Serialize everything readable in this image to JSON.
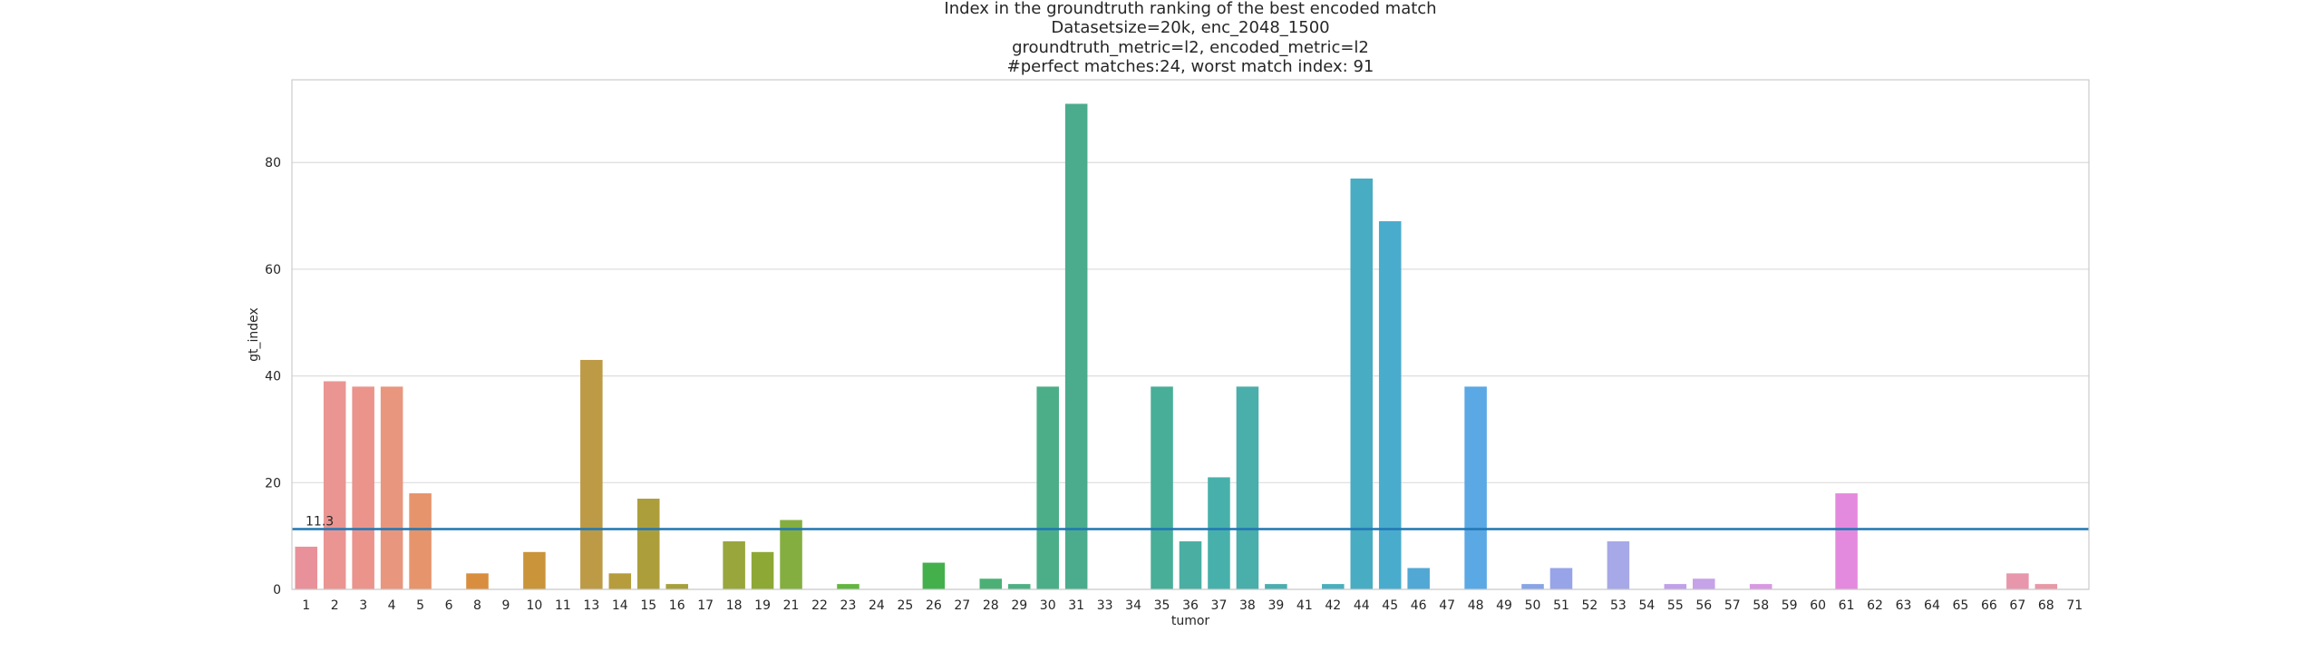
{
  "chart_data": {
    "type": "bar",
    "title_lines": [
      "Index in the groundtruth ranking of the best encoded match",
      "Datasetsize=20k, enc_2048_1500",
      "groundtruth_metric=l2, encoded_metric=l2",
      "#perfect matches:24, worst match index: 91"
    ],
    "xlabel": "tumor",
    "ylabel": "gt_index",
    "ylim": [
      0,
      95.5
    ],
    "yticks": [
      0,
      20,
      40,
      60,
      80
    ],
    "grid": true,
    "categories": [
      "1",
      "2",
      "3",
      "4",
      "5",
      "6",
      "8",
      "9",
      "10",
      "11",
      "13",
      "14",
      "15",
      "16",
      "17",
      "18",
      "19",
      "21",
      "22",
      "23",
      "24",
      "25",
      "26",
      "27",
      "28",
      "29",
      "30",
      "31",
      "33",
      "34",
      "35",
      "36",
      "37",
      "38",
      "39",
      "41",
      "42",
      "44",
      "45",
      "46",
      "47",
      "48",
      "49",
      "50",
      "51",
      "52",
      "53",
      "54",
      "55",
      "56",
      "57",
      "58",
      "59",
      "60",
      "61",
      "62",
      "63",
      "64",
      "65",
      "66",
      "67",
      "68",
      "71"
    ],
    "values": [
      8,
      39,
      38,
      38,
      18,
      0,
      3,
      0,
      7,
      0,
      43,
      3,
      17,
      1,
      0,
      9,
      7,
      13,
      0,
      1,
      0,
      0,
      5,
      0,
      2,
      1,
      38,
      91,
      0,
      0,
      38,
      9,
      21,
      38,
      1,
      0,
      1,
      77,
      69,
      4,
      0,
      38,
      0,
      1,
      4,
      0,
      9,
      0,
      1,
      2,
      0,
      1,
      0,
      0,
      18,
      0,
      0,
      0,
      0,
      0,
      3,
      1,
      0
    ],
    "colors": [
      "#e9919a",
      "#ea9592",
      "#ea948c",
      "#e8967e",
      "#e6946c",
      "#e28e56",
      "#d88e3e",
      "#cf9238",
      "#c9943a",
      "#c29a3e",
      "#bd9a46",
      "#b69c3c",
      "#ad9e3c",
      "#a6a03a",
      "#9ea23c",
      "#98a63c",
      "#8ea836",
      "#84ae40",
      "#6ebe3e",
      "#62b63e",
      "#56b642",
      "#4aae42",
      "#44b04c",
      "#48b060",
      "#4cb076",
      "#4cb084",
      "#4cae88",
      "#4aac8c",
      "#48ae94",
      "#48ae9c",
      "#48ae98",
      "#4aaea2",
      "#48b0aa",
      "#4aaeaa",
      "#4aaeb0",
      "#48aeb6",
      "#4aaebc",
      "#48acc2",
      "#4aaccc",
      "#52a8d4",
      "#56a6dc",
      "#5aa8e4",
      "#6aa2e4",
      "#86a4e6",
      "#98a4e8",
      "#a2a2e8",
      "#a6a8e8",
      "#b2a2e8",
      "#c0a0e8",
      "#c6a2e8",
      "#cc96e2",
      "#d898e2",
      "#e090e0",
      "#e48ae0",
      "#e48ade",
      "#e690d6",
      "#e692ce",
      "#e896c4",
      "#e896bc",
      "#e898b4",
      "#e896ac",
      "#e898a6",
      "#e89aa0"
    ],
    "mean_line": {
      "value": 11.3,
      "label": "11.3",
      "color": "#1f77b4"
    }
  }
}
